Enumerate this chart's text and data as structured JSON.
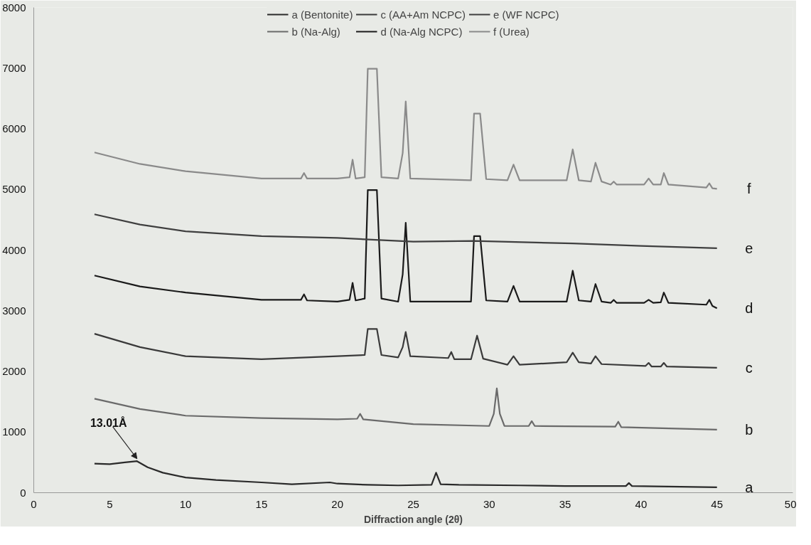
{
  "chart_data": {
    "type": "line",
    "xlabel": "Diffraction angle (2θ)",
    "xlim": [
      0,
      50
    ],
    "ylim": [
      0,
      8000
    ],
    "xticks": [
      0,
      5,
      10,
      15,
      20,
      25,
      30,
      35,
      40,
      45,
      50
    ],
    "yticks": [
      0,
      1000,
      2000,
      3000,
      4000,
      5000,
      6000,
      7000,
      8000
    ],
    "legend": "top",
    "marker": "none",
    "line_style": "solid",
    "series": [
      {
        "name": "a (Bentonite)",
        "color": "#2a2a2a",
        "x": [
          4,
          5,
          6,
          6.8,
          7.5,
          8.5,
          10,
          12,
          15,
          17,
          19.5,
          20,
          22,
          24,
          26.2,
          26.5,
          26.8,
          28,
          32,
          35,
          39,
          39.2,
          39.4,
          45
        ],
        "values": [
          480,
          470,
          500,
          520,
          420,
          330,
          250,
          210,
          170,
          140,
          170,
          150,
          130,
          120,
          130,
          330,
          140,
          130,
          120,
          110,
          110,
          160,
          110,
          90
        ]
      },
      {
        "name": "b (Na-Alg)",
        "color": "#6a6a6a",
        "x": [
          4,
          7,
          10,
          15,
          20,
          21.3,
          21.5,
          21.7,
          25,
          30,
          30.3,
          30.5,
          30.7,
          31,
          32.6,
          32.8,
          33,
          38.3,
          38.5,
          38.7,
          45
        ],
        "values": [
          1550,
          1380,
          1270,
          1230,
          1210,
          1220,
          1300,
          1210,
          1130,
          1100,
          1300,
          1720,
          1300,
          1100,
          1100,
          1180,
          1100,
          1090,
          1170,
          1080,
          1040
        ]
      },
      {
        "name": "c (AA+Am NCPC)",
        "color": "#3a3a3a",
        "x": [
          4,
          7,
          10,
          15,
          20,
          21.8,
          22,
          22.6,
          22.9,
          24,
          24.3,
          24.5,
          24.8,
          27.3,
          27.5,
          27.7,
          28.8,
          29.2,
          29.6,
          31.2,
          31.6,
          32,
          35.1,
          35.5,
          35.9,
          36.7,
          37,
          37.4,
          40.3,
          40.5,
          40.7,
          41.3,
          41.5,
          41.7,
          45
        ],
        "values": [
          2620,
          2400,
          2250,
          2200,
          2250,
          2270,
          2700,
          2700,
          2270,
          2230,
          2400,
          2650,
          2250,
          2220,
          2320,
          2200,
          2200,
          2590,
          2210,
          2110,
          2250,
          2110,
          2150,
          2310,
          2150,
          2130,
          2250,
          2120,
          2090,
          2140,
          2080,
          2080,
          2140,
          2080,
          2060
        ]
      },
      {
        "name": "d (Na-Alg NCPC)",
        "color": "#1a1a1a",
        "x": [
          4,
          7,
          10,
          15,
          17.6,
          17.8,
          18,
          20,
          20.8,
          21,
          21.2,
          21.8,
          22,
          22.6,
          22.9,
          24,
          24.3,
          24.5,
          24.8,
          28.8,
          29,
          29.4,
          29.8,
          31.2,
          31.6,
          32,
          35.1,
          35.5,
          35.9,
          36.7,
          37,
          37.4,
          38,
          38.2,
          38.4,
          40.2,
          40.5,
          40.8,
          41.3,
          41.5,
          41.8,
          44.3,
          44.5,
          44.7,
          45
        ],
        "values": [
          3580,
          3400,
          3300,
          3180,
          3180,
          3270,
          3170,
          3150,
          3180,
          3460,
          3170,
          3200,
          4990,
          4990,
          3200,
          3150,
          3600,
          4450,
          3150,
          3150,
          4230,
          4230,
          3170,
          3150,
          3410,
          3150,
          3150,
          3660,
          3170,
          3150,
          3440,
          3150,
          3130,
          3180,
          3130,
          3130,
          3180,
          3130,
          3140,
          3300,
          3130,
          3100,
          3180,
          3080,
          3040
        ]
      },
      {
        "name": "e (WF NCPC)",
        "color": "#3f3f3f",
        "x": [
          4,
          7,
          10,
          15,
          20,
          25,
          29,
          35.5,
          40,
          45
        ],
        "values": [
          4590,
          4420,
          4310,
          4230,
          4200,
          4140,
          4150,
          4110,
          4070,
          4030
        ]
      },
      {
        "name": "f (Urea)",
        "color": "#8a8a8a",
        "x": [
          4,
          7,
          10,
          15,
          17.6,
          17.8,
          18,
          20,
          20.8,
          21,
          21.2,
          21.8,
          22,
          22.6,
          22.9,
          24,
          24.3,
          24.5,
          24.8,
          28.8,
          29,
          29.4,
          29.8,
          31.2,
          31.6,
          32,
          35.1,
          35.5,
          35.9,
          36.7,
          37,
          37.4,
          38,
          38.2,
          38.4,
          40.2,
          40.5,
          40.8,
          41.3,
          41.5,
          41.8,
          44.3,
          44.5,
          44.7,
          45
        ],
        "values": [
          5610,
          5420,
          5300,
          5180,
          5180,
          5270,
          5180,
          5180,
          5200,
          5490,
          5180,
          5200,
          6990,
          6990,
          5200,
          5180,
          5600,
          6450,
          5180,
          5150,
          6250,
          6250,
          5170,
          5150,
          5410,
          5150,
          5150,
          5660,
          5150,
          5130,
          5440,
          5130,
          5080,
          5130,
          5080,
          5080,
          5180,
          5080,
          5080,
          5270,
          5080,
          5030,
          5100,
          5020,
          5010
        ]
      }
    ],
    "annotations": [
      {
        "text": "13.01Å",
        "x": 6.8,
        "y": 520
      },
      "a",
      "b",
      "c",
      "d",
      "e",
      "f"
    ]
  }
}
